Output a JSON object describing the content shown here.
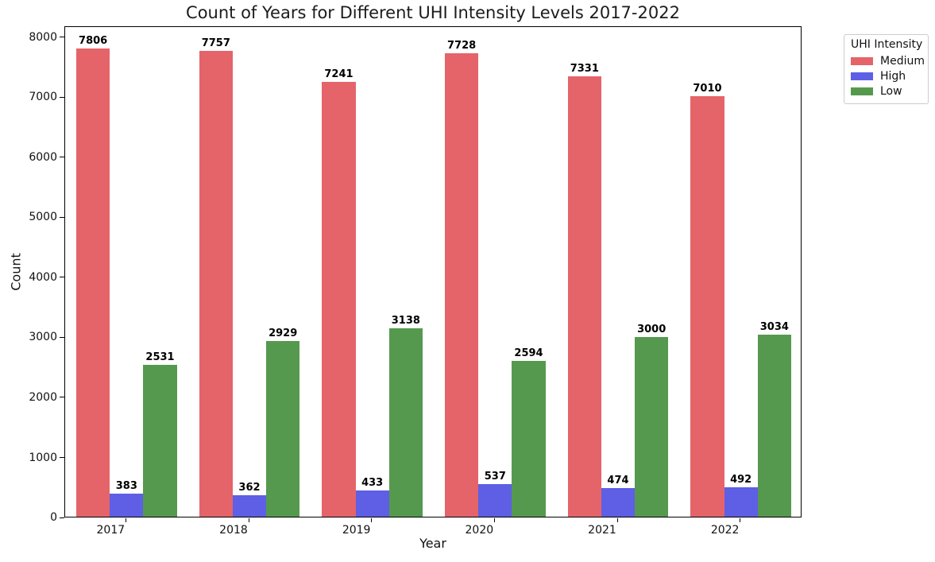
{
  "chart_data": {
    "type": "bar",
    "title": "Count of Years for Different UHI Intensity Levels 2017-2022",
    "xlabel": "Year",
    "ylabel": "Count",
    "categories": [
      "2017",
      "2018",
      "2019",
      "2020",
      "2021",
      "2022"
    ],
    "series": [
      {
        "name": "Medium",
        "color": "#e5646a",
        "values": [
          7806,
          7757,
          7241,
          7728,
          7331,
          7010
        ]
      },
      {
        "name": "High",
        "color": "#5e5fe4",
        "values": [
          383,
          362,
          433,
          537,
          474,
          492
        ]
      },
      {
        "name": "Low",
        "color": "#55994f",
        "values": [
          2531,
          2929,
          3138,
          2594,
          3000,
          3034
        ]
      }
    ],
    "ylim": [
      0,
      8185
    ],
    "yticks": [
      0,
      1000,
      2000,
      3000,
      4000,
      5000,
      6000,
      7000,
      8000
    ],
    "bar_labels": true,
    "grid": false,
    "legend_title": "UHI Intensity",
    "legend_position": "upper-right-outside",
    "spine_color": "#000000",
    "background_color": "#ffffff"
  }
}
